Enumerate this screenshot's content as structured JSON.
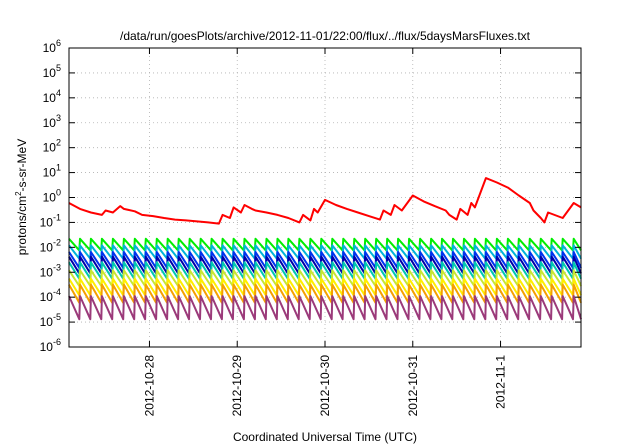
{
  "chart_data": {
    "type": "line",
    "title": "/data/run/goesPlots/archive/2012-11-01/22:00/flux/../flux/5daysMarsFluxes.txt",
    "xlabel": "Coordinated Universal Time (UTC)",
    "ylabel": {
      "prefix": "protons/cm",
      "sup": "2",
      "suffix": "-s-sr-MeV"
    },
    "yscale": "log",
    "ylim": [
      1e-06,
      1000000.0
    ],
    "xlim": [
      "2012-10-27T02:00",
      "2012-11-01T22:00"
    ],
    "grid": true,
    "legend": "none",
    "y_ticks": [
      {
        "value": 1000000.0,
        "base": "10",
        "exp": "6"
      },
      {
        "value": 100000.0,
        "base": "10",
        "exp": "5"
      },
      {
        "value": 10000.0,
        "base": "10",
        "exp": "4"
      },
      {
        "value": 1000.0,
        "base": "10",
        "exp": "3"
      },
      {
        "value": 100.0,
        "base": "10",
        "exp": "2"
      },
      {
        "value": 10.0,
        "base": "10",
        "exp": "1"
      },
      {
        "value": 1.0,
        "base": "10",
        "exp": "0"
      },
      {
        "value": 0.1,
        "base": "10",
        "exp": "-1"
      },
      {
        "value": 0.01,
        "base": "10",
        "exp": "-2"
      },
      {
        "value": 0.001,
        "base": "10",
        "exp": "-3"
      },
      {
        "value": 0.0001,
        "base": "10",
        "exp": "-4"
      },
      {
        "value": 1e-05,
        "base": "10",
        "exp": "-5"
      },
      {
        "value": 1e-06,
        "base": "10",
        "exp": "-6"
      }
    ],
    "x_ticks": [
      {
        "value": "2012-10-28T00:00",
        "label": "2012-10-28"
      },
      {
        "value": "2012-10-29T00:00",
        "label": "2012-10-29"
      },
      {
        "value": "2012-10-30T00:00",
        "label": "2012-10-30"
      },
      {
        "value": "2012-10-31T00:00",
        "label": "2012-10-31"
      },
      {
        "value": "2012-11-01T00:00",
        "label": "2012-11-1"
      }
    ],
    "series": [
      {
        "color": "#ff0000",
        "x": [
          "2012-10-27T02:00",
          "2012-10-27T05:00",
          "2012-10-27T08:00",
          "2012-10-27T11:00",
          "2012-10-27T12:00",
          "2012-10-27T14:00",
          "2012-10-27T16:00",
          "2012-10-27T17:00",
          "2012-10-27T20:00",
          "2012-10-27T22:00",
          "2012-10-28T01:00",
          "2012-10-28T04:00",
          "2012-10-28T07:00",
          "2012-10-28T10:00",
          "2012-10-28T13:00",
          "2012-10-28T16:00",
          "2012-10-28T19:00",
          "2012-10-28T20:00",
          "2012-10-28T22:00",
          "2012-10-28T23:00",
          "2012-10-29T01:00",
          "2012-10-29T02:00",
          "2012-10-29T04:00",
          "2012-10-29T05:00",
          "2012-10-29T08:00",
          "2012-10-29T11:00",
          "2012-10-29T14:00",
          "2012-10-29T17:00",
          "2012-10-29T18:00",
          "2012-10-29T20:00",
          "2012-10-29T21:00",
          "2012-10-29T22:00",
          "2012-10-30T00:00",
          "2012-10-30T03:00",
          "2012-10-30T06:00",
          "2012-10-30T09:00",
          "2012-10-30T12:00",
          "2012-10-30T15:00",
          "2012-10-30T16:00",
          "2012-10-30T18:00",
          "2012-10-30T19:00",
          "2012-10-30T21:00",
          "2012-10-31T00:00",
          "2012-10-31T03:00",
          "2012-10-31T06:00",
          "2012-10-31T09:00",
          "2012-10-31T10:00",
          "2012-10-31T12:00",
          "2012-10-31T13:00",
          "2012-10-31T15:00",
          "2012-10-31T16:00",
          "2012-10-31T17:00",
          "2012-10-31T20:00",
          "2012-10-31T23:00",
          "2012-11-01T02:00",
          "2012-11-01T05:00",
          "2012-11-01T08:00",
          "2012-11-01T09:00",
          "2012-11-01T11:00",
          "2012-11-01T12:00",
          "2012-11-01T13:00",
          "2012-11-01T17:00",
          "2012-11-01T20:00",
          "2012-11-01T22:00"
        ],
        "y": [
          0.6,
          0.35,
          0.25,
          0.2,
          0.3,
          0.25,
          0.45,
          0.35,
          0.28,
          0.2,
          0.18,
          0.15,
          0.13,
          0.12,
          0.11,
          0.1,
          0.09,
          0.2,
          0.15,
          0.4,
          0.25,
          0.5,
          0.35,
          0.3,
          0.25,
          0.2,
          0.15,
          0.1,
          0.2,
          0.12,
          0.35,
          0.25,
          0.8,
          0.5,
          0.35,
          0.25,
          0.18,
          0.13,
          0.3,
          0.2,
          0.5,
          0.3,
          1.2,
          0.7,
          0.45,
          0.3,
          0.2,
          0.13,
          0.35,
          0.2,
          0.6,
          0.4,
          6,
          4,
          2.5,
          1.2,
          0.6,
          0.3,
          0.15,
          0.1,
          0.25,
          0.15,
          0.6,
          0.4
        ]
      }
    ],
    "bands": [
      {
        "color": "#00ee00",
        "high": 0.022,
        "low": 0.0075
      },
      {
        "color": "#00b4d8",
        "high": 0.012,
        "low": 0.0035
      },
      {
        "color": "#0033ee",
        "high": 0.0065,
        "low": 0.0015
      },
      {
        "color": "#0000aa",
        "high": 0.0042,
        "low": 0.0009
      },
      {
        "color": "#00c8b0",
        "high": 0.0025,
        "low": 0.00055
      },
      {
        "color": "#c8e632",
        "high": 0.0012,
        "low": 0.00028
      },
      {
        "color": "#ffee00",
        "high": 0.00055,
        "low": 0.00012
      },
      {
        "color": "#f5a000",
        "high": 0.00032,
        "low": 6e-05
      },
      {
        "color": "#9b3a7a",
        "high": 0.00011,
        "low": 1.3e-05
      }
    ],
    "band_period_hours": 3
  }
}
